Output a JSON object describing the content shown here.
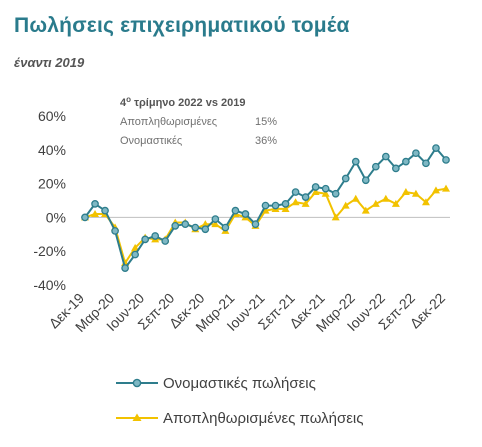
{
  "header": {
    "title": "Πωλήσεις επιχειρηματικού τομέα",
    "subtitle": "έναντι 2019"
  },
  "annotation": {
    "title_main": "4",
    "title_sup": "ο",
    "title_rest": " τρίμηνο 2022 vs 2019",
    "rows": [
      {
        "label": "Αποπληθωρισμένες",
        "value": "15%"
      },
      {
        "label": "Ονομαστικές",
        "value": "36%"
      }
    ]
  },
  "colors": {
    "nominal": "#2e7d8c",
    "nominal_fill": "#7fb8c4",
    "deflated": "#f2c200",
    "title": "#2a7b8c"
  },
  "chart_data": {
    "type": "line",
    "ylim": [
      -40,
      60
    ],
    "yticks": [
      -40,
      -20,
      0,
      20,
      40,
      60
    ],
    "ytick_labels": [
      "-40%",
      "-20%",
      "0%",
      "20%",
      "40%",
      "60%"
    ],
    "x": [
      "Δεκ-19",
      "Ιαν-20",
      "Φεβ-20",
      "Μαρ-20",
      "Απρ-20",
      "Μαϊ-20",
      "Ιουν-20",
      "Ιουλ-20",
      "Αυγ-20",
      "Σεπ-20",
      "Οκτ-20",
      "Νοε-20",
      "Δεκ-20",
      "Ιαν-21",
      "Φεβ-21",
      "Μαρ-21",
      "Απρ-21",
      "Μαϊ-21",
      "Ιουν-21",
      "Ιουλ-21",
      "Αυγ-21",
      "Σεπ-21",
      "Οκτ-21",
      "Νοε-21",
      "Δεκ-21",
      "Ιαν-22",
      "Φεβ-22",
      "Μαρ-22",
      "Απρ-22",
      "Μαϊ-22",
      "Ιουν-22",
      "Ιουλ-22",
      "Αυγ-22",
      "Σεπ-22",
      "Οκτ-22",
      "Νοε-22",
      "Δεκ-22"
    ],
    "xtick_labels": [
      "Δεκ-19",
      "Μαρ-20",
      "Ιουν-20",
      "Σεπ-20",
      "Δεκ-20",
      "Μαρ-21",
      "Ιουν-21",
      "Σεπ-21",
      "Δεκ-21",
      "Μαρ-22",
      "Ιουν-22",
      "Σεπ-22",
      "Δεκ-22"
    ],
    "series": [
      {
        "name": "Ονομαστικές πωλήσεις",
        "marker": "circle",
        "values": [
          0,
          8,
          4,
          -8,
          -30,
          -22,
          -13,
          -11,
          -14,
          -5,
          -4,
          -6,
          -7,
          -1,
          -6,
          4,
          2,
          -4,
          7,
          7,
          8,
          15,
          12,
          18,
          17,
          14,
          23,
          33,
          22,
          30,
          36,
          29,
          33,
          38,
          32,
          41,
          34
        ]
      },
      {
        "name": "Αποπληθωρισμένες πωλήσεις",
        "marker": "triangle",
        "values": [
          0,
          2,
          2,
          -6,
          -27,
          -18,
          -12,
          -13,
          -13,
          -3,
          -3,
          -7,
          -4,
          -4,
          -8,
          2,
          0,
          -5,
          4,
          5,
          5,
          9,
          8,
          15,
          14,
          0,
          7,
          11,
          4,
          8,
          11,
          8,
          15,
          14,
          9,
          16,
          17
        ]
      }
    ],
    "grid": false,
    "legend": "bottom"
  }
}
